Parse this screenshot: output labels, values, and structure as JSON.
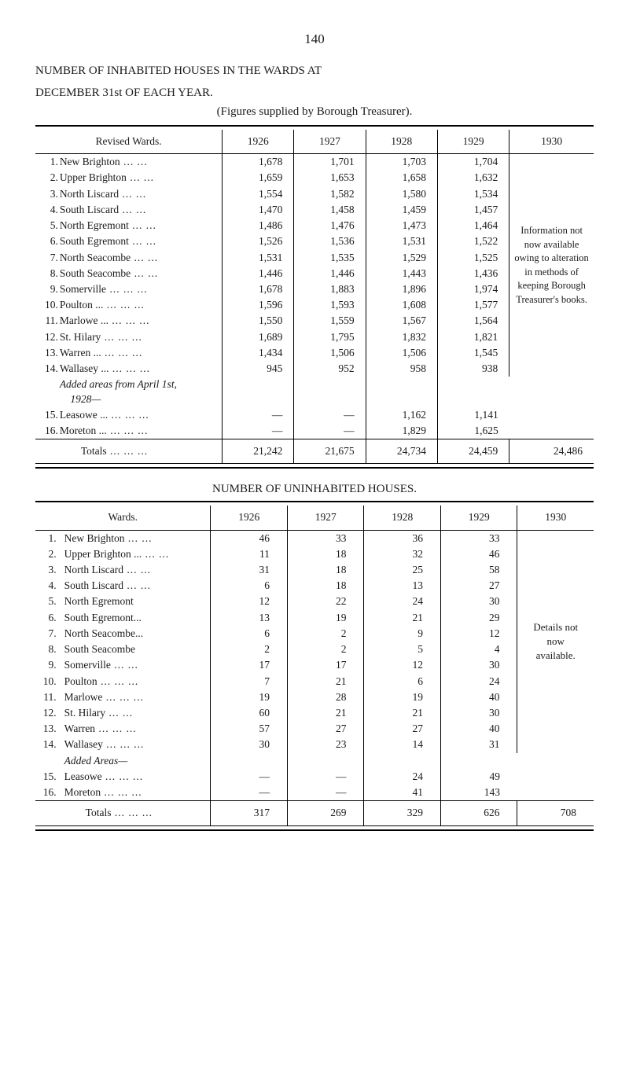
{
  "page_number": "140",
  "title_line1": "NUMBER OF INHABITED HOUSES IN THE WARDS AT",
  "title_line2": "DECEMBER 31st OF EACH YEAR.",
  "subtitle": "(Figures supplied by Borough Treasurer).",
  "table1": {
    "header_label": "Revised Wards.",
    "years": [
      "1926",
      "1927",
      "1928",
      "1929",
      "1930"
    ],
    "rows": [
      {
        "n": "1.",
        "label": "New Brighton",
        "d": "dots",
        "v": [
          "1,678",
          "1,701",
          "1,703",
          "1,704"
        ]
      },
      {
        "n": "2.",
        "label": "Upper Brighton",
        "d": "dots",
        "v": [
          "1,659",
          "1,653",
          "1,658",
          "1,632"
        ]
      },
      {
        "n": "3.",
        "label": "North Liscard",
        "d": "dots",
        "v": [
          "1,554",
          "1,582",
          "1,580",
          "1,534"
        ]
      },
      {
        "n": "4.",
        "label": "South Liscard",
        "d": "dots",
        "v": [
          "1,470",
          "1,458",
          "1,459",
          "1,457"
        ]
      },
      {
        "n": "5.",
        "label": "North Egremont",
        "d": "dots",
        "v": [
          "1,486",
          "1,476",
          "1,473",
          "1,464"
        ]
      },
      {
        "n": "6.",
        "label": "South Egremont",
        "d": "dots",
        "v": [
          "1,526",
          "1,536",
          "1,531",
          "1,522"
        ]
      },
      {
        "n": "7.",
        "label": "North Seacombe",
        "d": "dots",
        "v": [
          "1,531",
          "1,535",
          "1,529",
          "1,525"
        ]
      },
      {
        "n": "8.",
        "label": "South Seacombe",
        "d": "dots",
        "v": [
          "1,446",
          "1,446",
          "1,443",
          "1,436"
        ]
      },
      {
        "n": "9.",
        "label": "Somerville",
        "d": "dots3",
        "v": [
          "1,678",
          "1,883",
          "1,896",
          "1,974"
        ]
      },
      {
        "n": "10.",
        "label": "Poulton ...",
        "d": "dots3",
        "v": [
          "1,596",
          "1,593",
          "1,608",
          "1,577"
        ]
      },
      {
        "n": "11.",
        "label": "Marlowe ...",
        "d": "dots3",
        "v": [
          "1,550",
          "1,559",
          "1,567",
          "1,564"
        ]
      },
      {
        "n": "12.",
        "label": "St. Hilary",
        "d": "dots3",
        "v": [
          "1,689",
          "1,795",
          "1,832",
          "1,821"
        ]
      },
      {
        "n": "13.",
        "label": "Warren ...",
        "d": "dots3",
        "v": [
          "1,434",
          "1,506",
          "1,506",
          "1,545"
        ]
      },
      {
        "n": "14.",
        "label": "Wallasey ...",
        "d": "dots3",
        "v": [
          "945",
          "952",
          "958",
          "938"
        ]
      }
    ],
    "added_label1": "Added areas from April 1st,",
    "added_label2": "1928—",
    "added_rows": [
      {
        "n": "15.",
        "label": "Leasowe ...",
        "d": "dots3",
        "v": [
          "—",
          "—",
          "1,162",
          "1,141"
        ]
      },
      {
        "n": "16.",
        "label": "Moreton ...",
        "d": "dots3",
        "v": [
          "—",
          "—",
          "1,829",
          "1,625"
        ]
      }
    ],
    "totals_label": "Totals",
    "totals": [
      "21,242",
      "21,675",
      "24,734",
      "24,459",
      "24,486"
    ],
    "note_1930": "Information not now available owing to alteration in methods of keeping Borough Treasurer's books."
  },
  "section2_title": "NUMBER OF UNINHABITED HOUSES.",
  "table2": {
    "header_label": "Wards.",
    "years": [
      "1926",
      "1927",
      "1928",
      "1929",
      "1930"
    ],
    "rows": [
      {
        "n": "1.",
        "label": "New Brighton",
        "d": "dots",
        "v": [
          "46",
          "33",
          "36",
          "33"
        ]
      },
      {
        "n": "2.",
        "label": "Upper Brighton ...",
        "d": "dots",
        "v": [
          "11",
          "18",
          "32",
          "46"
        ]
      },
      {
        "n": "3.",
        "label": "North Liscard",
        "d": "dots",
        "v": [
          "31",
          "18",
          "25",
          "58"
        ]
      },
      {
        "n": "4.",
        "label": "South Liscard",
        "d": "dots",
        "v": [
          "6",
          "18",
          "13",
          "27"
        ]
      },
      {
        "n": "5.",
        "label": "North Egremont",
        "d": "",
        "v": [
          "12",
          "22",
          "24",
          "30"
        ]
      },
      {
        "n": "6.",
        "label": "South Egremont...",
        "d": "",
        "v": [
          "13",
          "19",
          "21",
          "29"
        ]
      },
      {
        "n": "7.",
        "label": "North Seacombe...",
        "d": "",
        "v": [
          "6",
          "2",
          "9",
          "12"
        ]
      },
      {
        "n": "8.",
        "label": "South Seacombe",
        "d": "",
        "v": [
          "2",
          "2",
          "5",
          "4"
        ]
      },
      {
        "n": "9.",
        "label": "Somerville",
        "d": "dots",
        "v": [
          "17",
          "17",
          "12",
          "30"
        ]
      },
      {
        "n": "10.",
        "label": "Poulton",
        "d": "dots3",
        "v": [
          "7",
          "21",
          "6",
          "24"
        ]
      },
      {
        "n": "11.",
        "label": "Marlowe",
        "d": "dots3",
        "v": [
          "19",
          "28",
          "19",
          "40"
        ]
      },
      {
        "n": "12.",
        "label": "St. Hilary",
        "d": "dots",
        "v": [
          "60",
          "21",
          "21",
          "30"
        ]
      },
      {
        "n": "13.",
        "label": "Warren",
        "d": "dots3",
        "v": [
          "57",
          "27",
          "27",
          "40"
        ]
      },
      {
        "n": "14.",
        "label": "Wallasey",
        "d": "dots3",
        "v": [
          "30",
          "23",
          "14",
          "31"
        ]
      }
    ],
    "added_label": "Added Areas—",
    "added_rows": [
      {
        "n": "15.",
        "label": "Leasowe",
        "d": "dots3",
        "v": [
          "—",
          "—",
          "24",
          "49"
        ]
      },
      {
        "n": "16.",
        "label": "Moreton",
        "d": "dots3",
        "v": [
          "—",
          "—",
          "41",
          "143"
        ]
      }
    ],
    "totals_label": "Totals",
    "totals": [
      "317",
      "269",
      "329",
      "626",
      "708"
    ],
    "note_1930": "Details not now available."
  }
}
